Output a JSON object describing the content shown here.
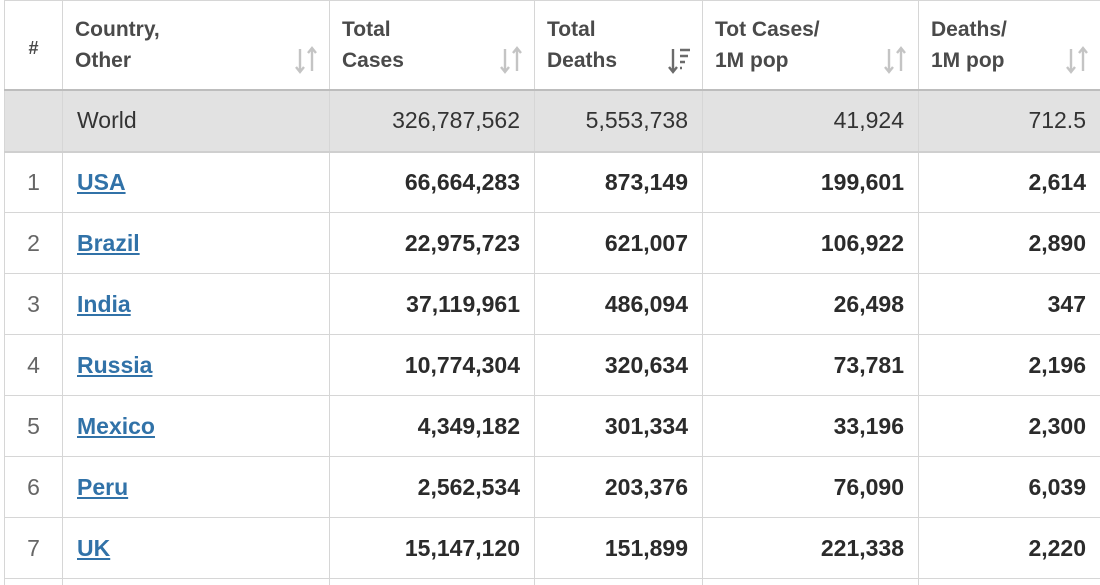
{
  "headers": {
    "index": "#",
    "country_line1": "Country,",
    "country_line2": "Other",
    "cases_line1": "Total",
    "cases_line2": "Cases",
    "deaths_line1": "Total",
    "deaths_line2": "Deaths",
    "casespm_line1": "Tot Cases/",
    "casespm_line2": "1M pop",
    "deathspm_line1": "Deaths/",
    "deathspm_line2": "1M pop"
  },
  "sort_icons": {
    "country": "sort-both-icon",
    "total_cases": "sort-both-icon",
    "total_deaths": "sort-descending-active-icon",
    "tot_cases_per_1m": "sort-both-icon",
    "deaths_per_1m": "sort-both-icon"
  },
  "world": {
    "name": "World",
    "total_cases": "326,787,562",
    "total_deaths": "5,553,738",
    "tot_cases_per_1m": "41,924",
    "deaths_per_1m": "712.5"
  },
  "rows": [
    {
      "index": "1",
      "country": "USA",
      "total_cases": "66,664,283",
      "total_deaths": "873,149",
      "tot_cases_per_1m": "199,601",
      "deaths_per_1m": "2,614"
    },
    {
      "index": "2",
      "country": "Brazil",
      "total_cases": "22,975,723",
      "total_deaths": "621,007",
      "tot_cases_per_1m": "106,922",
      "deaths_per_1m": "2,890"
    },
    {
      "index": "3",
      "country": "India",
      "total_cases": "37,119,961",
      "total_deaths": "486,094",
      "tot_cases_per_1m": "26,498",
      "deaths_per_1m": "347"
    },
    {
      "index": "4",
      "country": "Russia",
      "total_cases": "10,774,304",
      "total_deaths": "320,634",
      "tot_cases_per_1m": "73,781",
      "deaths_per_1m": "2,196"
    },
    {
      "index": "5",
      "country": "Mexico",
      "total_cases": "4,349,182",
      "total_deaths": "301,334",
      "tot_cases_per_1m": "33,196",
      "deaths_per_1m": "2,300"
    },
    {
      "index": "6",
      "country": "Peru",
      "total_cases": "2,562,534",
      "total_deaths": "203,376",
      "tot_cases_per_1m": "76,090",
      "deaths_per_1m": "6,039"
    },
    {
      "index": "7",
      "country": "UK",
      "total_cases": "15,147,120",
      "total_deaths": "151,899",
      "tot_cases_per_1m": "221,338",
      "deaths_per_1m": "2,220"
    }
  ],
  "colors": {
    "link": "#3172a8",
    "world_row_bg": "#e2e2e2",
    "border": "#d6d6d6",
    "sort_icon": "#c4c4c4",
    "sort_icon_active": "#6b6b6b"
  }
}
